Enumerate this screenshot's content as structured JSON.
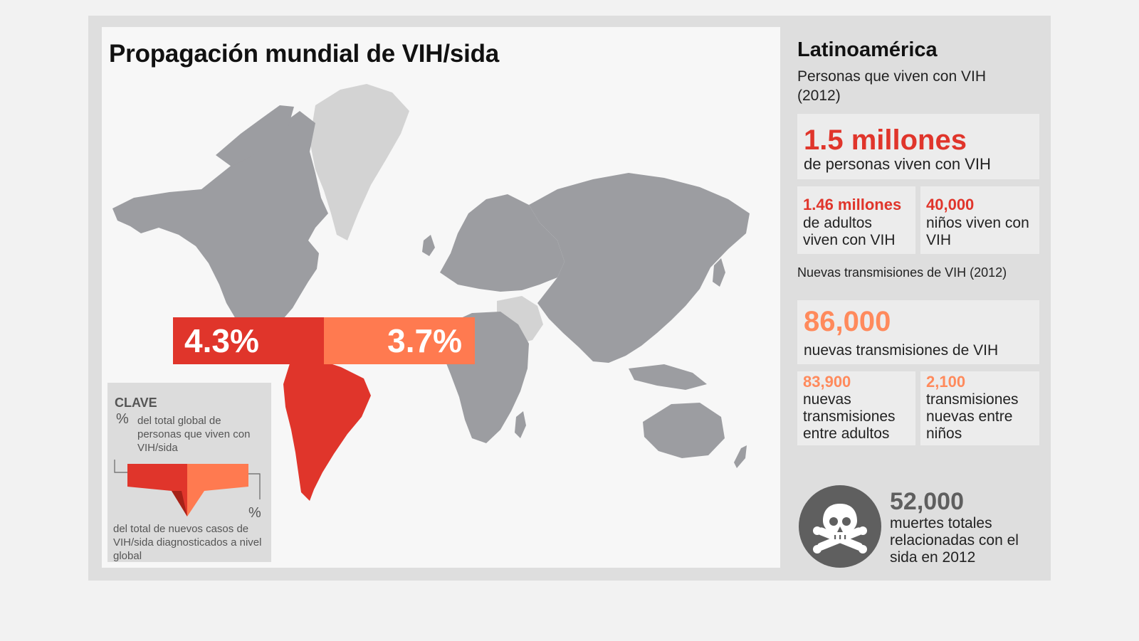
{
  "map": {
    "title": "Propagación mundial de VIH/sida",
    "pct_global_plhiv": "4.3%",
    "pct_new_cases": "3.7%"
  },
  "key": {
    "title": "CLAVE",
    "pct_symbol_1": "%",
    "desc_1": "del total global de personas que viven con VIH/sida",
    "pct_symbol_2": "%",
    "desc_2": "del total de nuevos casos de VIH/sida diagnosticados a nivel global"
  },
  "sidebar": {
    "title": "Latinoamérica",
    "subtitle": "Personas que viven con VIH (2012)",
    "total": {
      "value": "1.5 millones",
      "label": "de personas viven con VIH"
    },
    "adults": {
      "value": "1.46 millones",
      "label": "de adultos viven con VIH"
    },
    "children": {
      "value": "40,000",
      "label": "niños viven con VIH"
    },
    "new_label": "Nuevas transmisiones de VIH (2012)",
    "new_total": {
      "value": "86,000",
      "label": "nuevas transmisiones de VIH"
    },
    "new_adults": {
      "value": "83,900",
      "label": "nuevas transmisiones entre adultos"
    },
    "new_children": {
      "value": "2,100",
      "label": "transmisiones nuevas entre niños"
    },
    "deaths": {
      "value": "52,000",
      "label": "muertes totales relacionadas con el sida en 2012"
    }
  },
  "colors": {
    "red": "#e0352b",
    "orange": "#ff7a50",
    "land": "#9c9da1",
    "greenland": "#d3d3d3"
  },
  "icons": {
    "deaths": "skull-crossbones-icon"
  }
}
